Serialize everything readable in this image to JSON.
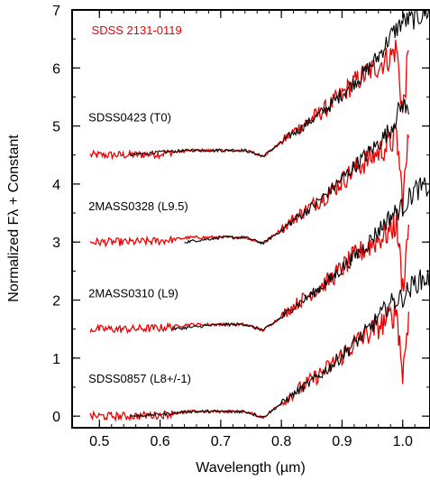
{
  "chart_data": {
    "type": "line",
    "xlabel": "Wavelength (µm)",
    "ylabel": "Normalized Fλ + Constant",
    "xlim": [
      0.455,
      1.045
    ],
    "ylim": [
      -0.2,
      7.0
    ],
    "x_ticks": [
      0.5,
      0.6,
      0.7,
      0.8,
      0.9,
      1.0
    ],
    "x_tick_labels": [
      "0.5",
      "0.6",
      "0.7",
      "0.8",
      "0.9",
      "1.0"
    ],
    "y_ticks": [
      0,
      1,
      2,
      3,
      4,
      5,
      6,
      7
    ],
    "y_tick_labels": [
      "0",
      "1",
      "2",
      "3",
      "4",
      "5",
      "6",
      "7"
    ],
    "grid": false,
    "colors": {
      "template": "#000000",
      "target": "#ee0000"
    },
    "annotations": [
      {
        "text": "SDSS 2131-0119",
        "color": "#ee0000",
        "x": 0.487,
        "y": 6.58
      },
      {
        "text": "SDSS0423 (T0)",
        "color": "#000000",
        "x": 0.482,
        "y": 5.08
      },
      {
        "text": "2MASS0328 (L9.5)",
        "color": "#000000",
        "x": 0.482,
        "y": 3.55
      },
      {
        "text": "2MASS0310 (L9)",
        "color": "#000000",
        "x": 0.482,
        "y": 2.05
      },
      {
        "text": "SDSS0857 (L8+/-1)",
        "color": "#000000",
        "x": 0.482,
        "y": 0.58
      }
    ],
    "series": [
      {
        "role": "target",
        "offset": 4.5,
        "x": [
          0.485,
          0.55,
          0.6,
          0.65,
          0.7,
          0.74,
          0.77,
          0.8,
          0.82,
          0.84,
          0.86,
          0.88,
          0.9,
          0.92,
          0.94,
          0.96,
          0.98,
          0.99,
          1.0,
          1.01
        ],
        "y": [
          4.5,
          4.5,
          4.52,
          4.58,
          4.58,
          4.58,
          4.48,
          4.72,
          4.9,
          5.05,
          5.2,
          5.35,
          5.55,
          5.75,
          5.9,
          6.05,
          6.2,
          6.35,
          5.2,
          6.3
        ]
      },
      {
        "role": "template",
        "offset": 4.5,
        "x": [
          0.55,
          0.6,
          0.65,
          0.7,
          0.74,
          0.77,
          0.8,
          0.82,
          0.84,
          0.86,
          0.88,
          0.9,
          0.92,
          0.94,
          0.96,
          0.98,
          1.0,
          1.02,
          1.045
        ],
        "y": [
          4.5,
          4.55,
          4.58,
          4.58,
          4.58,
          4.48,
          4.72,
          4.88,
          5.02,
          5.18,
          5.35,
          5.55,
          5.75,
          5.95,
          6.2,
          6.55,
          6.8,
          6.85,
          7.0
        ]
      },
      {
        "role": "target",
        "offset": 3.0,
        "x": [
          0.485,
          0.55,
          0.6,
          0.65,
          0.7,
          0.74,
          0.77,
          0.8,
          0.82,
          0.84,
          0.86,
          0.88,
          0.9,
          0.92,
          0.94,
          0.96,
          0.98,
          0.99,
          1.0,
          1.01
        ],
        "y": [
          3.0,
          3.0,
          3.02,
          3.08,
          3.08,
          3.08,
          2.98,
          3.22,
          3.4,
          3.55,
          3.7,
          3.85,
          4.05,
          4.25,
          4.4,
          4.55,
          4.7,
          4.85,
          3.7,
          4.8
        ]
      },
      {
        "role": "template",
        "offset": 3.0,
        "x": [
          0.64,
          0.7,
          0.74,
          0.77,
          0.8,
          0.82,
          0.84,
          0.86,
          0.88,
          0.9,
          0.92,
          0.94,
          0.96,
          0.98,
          1.0,
          1.01
        ],
        "y": [
          3.0,
          3.08,
          3.08,
          2.98,
          3.2,
          3.38,
          3.52,
          3.7,
          3.88,
          4.1,
          4.3,
          4.5,
          4.7,
          4.95,
          5.4,
          5.2
        ]
      },
      {
        "role": "target",
        "offset": 1.5,
        "x": [
          0.485,
          0.55,
          0.6,
          0.65,
          0.7,
          0.74,
          0.77,
          0.8,
          0.82,
          0.84,
          0.86,
          0.88,
          0.9,
          0.92,
          0.94,
          0.96,
          0.98,
          0.99,
          1.0,
          1.01
        ],
        "y": [
          1.5,
          1.5,
          1.52,
          1.58,
          1.58,
          1.58,
          1.48,
          1.72,
          1.9,
          2.05,
          2.2,
          2.35,
          2.55,
          2.75,
          2.9,
          3.05,
          3.2,
          3.35,
          2.2,
          3.3
        ]
      },
      {
        "role": "template",
        "offset": 1.5,
        "x": [
          0.62,
          0.7,
          0.74,
          0.77,
          0.8,
          0.82,
          0.84,
          0.86,
          0.88,
          0.9,
          0.92,
          0.94,
          0.96,
          0.98,
          1.0,
          1.02,
          1.045
        ],
        "y": [
          1.5,
          1.58,
          1.58,
          1.48,
          1.7,
          1.88,
          2.02,
          2.18,
          2.35,
          2.55,
          2.75,
          2.95,
          3.2,
          3.45,
          3.6,
          3.9,
          3.95
        ]
      },
      {
        "role": "target",
        "offset": 0.0,
        "x": [
          0.485,
          0.55,
          0.6,
          0.65,
          0.7,
          0.74,
          0.77,
          0.8,
          0.82,
          0.84,
          0.86,
          0.88,
          0.9,
          0.92,
          0.94,
          0.96,
          0.98,
          0.99,
          1.0,
          1.01
        ],
        "y": [
          0.0,
          0.0,
          0.02,
          0.08,
          0.08,
          0.08,
          -0.02,
          0.22,
          0.4,
          0.55,
          0.7,
          0.85,
          1.05,
          1.25,
          1.4,
          1.55,
          1.7,
          1.85,
          0.7,
          1.8
        ]
      },
      {
        "role": "template",
        "offset": 0.0,
        "x": [
          0.55,
          0.6,
          0.65,
          0.7,
          0.74,
          0.77,
          0.8,
          0.82,
          0.84,
          0.86,
          0.88,
          0.9,
          0.92,
          0.94,
          0.96,
          0.98,
          1.0,
          1.02,
          1.045
        ],
        "y": [
          0.0,
          0.03,
          0.08,
          0.08,
          0.08,
          -0.02,
          0.22,
          0.38,
          0.52,
          0.68,
          0.85,
          1.05,
          1.25,
          1.45,
          1.7,
          1.95,
          2.05,
          2.3,
          2.4
        ]
      }
    ]
  }
}
